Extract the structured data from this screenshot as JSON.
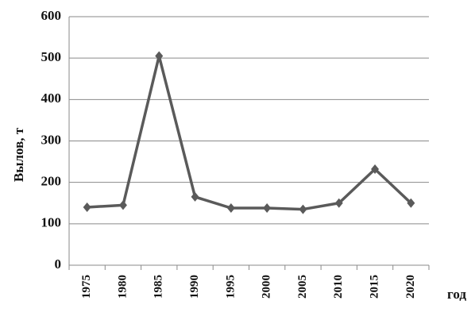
{
  "chart_data": {
    "type": "line",
    "x_label": "год",
    "y_label": "Вылов, т",
    "categories": [
      "1975",
      "1980",
      "1985",
      "1990",
      "1995",
      "2000",
      "2005",
      "2010",
      "2015",
      "2020"
    ],
    "values": [
      140,
      145,
      505,
      165,
      138,
      138,
      135,
      150,
      232,
      150
    ],
    "color": "#5a5a5a",
    "ylim": [
      0,
      600
    ],
    "yticks": [
      0,
      100,
      200,
      300,
      400,
      500,
      600
    ],
    "grid": true
  }
}
